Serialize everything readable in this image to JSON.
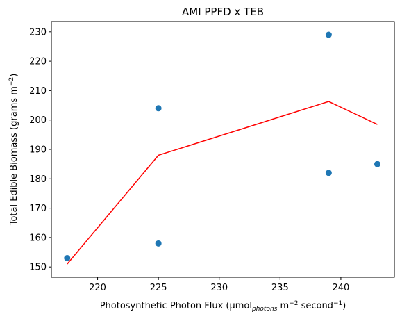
{
  "chart_data": {
    "type": "scatter",
    "title": "AMI PPFD x TEB",
    "xlabel": {
      "prefix": "Photosynthetic Photon Flux (μmol",
      "sub": "photons",
      "mid": " m",
      "sup1": "−2",
      "mid2": " second",
      "sup2": "−1",
      "suffix": ")"
    },
    "ylabel": {
      "prefix": "Total Edible Biomass (grams m",
      "sup": "−2",
      "suffix": ")"
    },
    "xlim": [
      216.2,
      244.4
    ],
    "ylim": [
      146.5,
      233.5
    ],
    "xticks": [
      220,
      225,
      230,
      235,
      240
    ],
    "yticks": [
      150,
      160,
      170,
      180,
      190,
      200,
      210,
      220,
      230
    ],
    "points": {
      "color": "#1f77b4",
      "x": [
        217.5,
        225,
        225,
        239,
        239,
        243
      ],
      "y": [
        153,
        204,
        158,
        229,
        182,
        185
      ]
    },
    "line": {
      "color": "#ff0000",
      "x": [
        217.5,
        225,
        239,
        243
      ],
      "y": [
        151,
        188,
        206.3,
        198.5
      ]
    }
  }
}
